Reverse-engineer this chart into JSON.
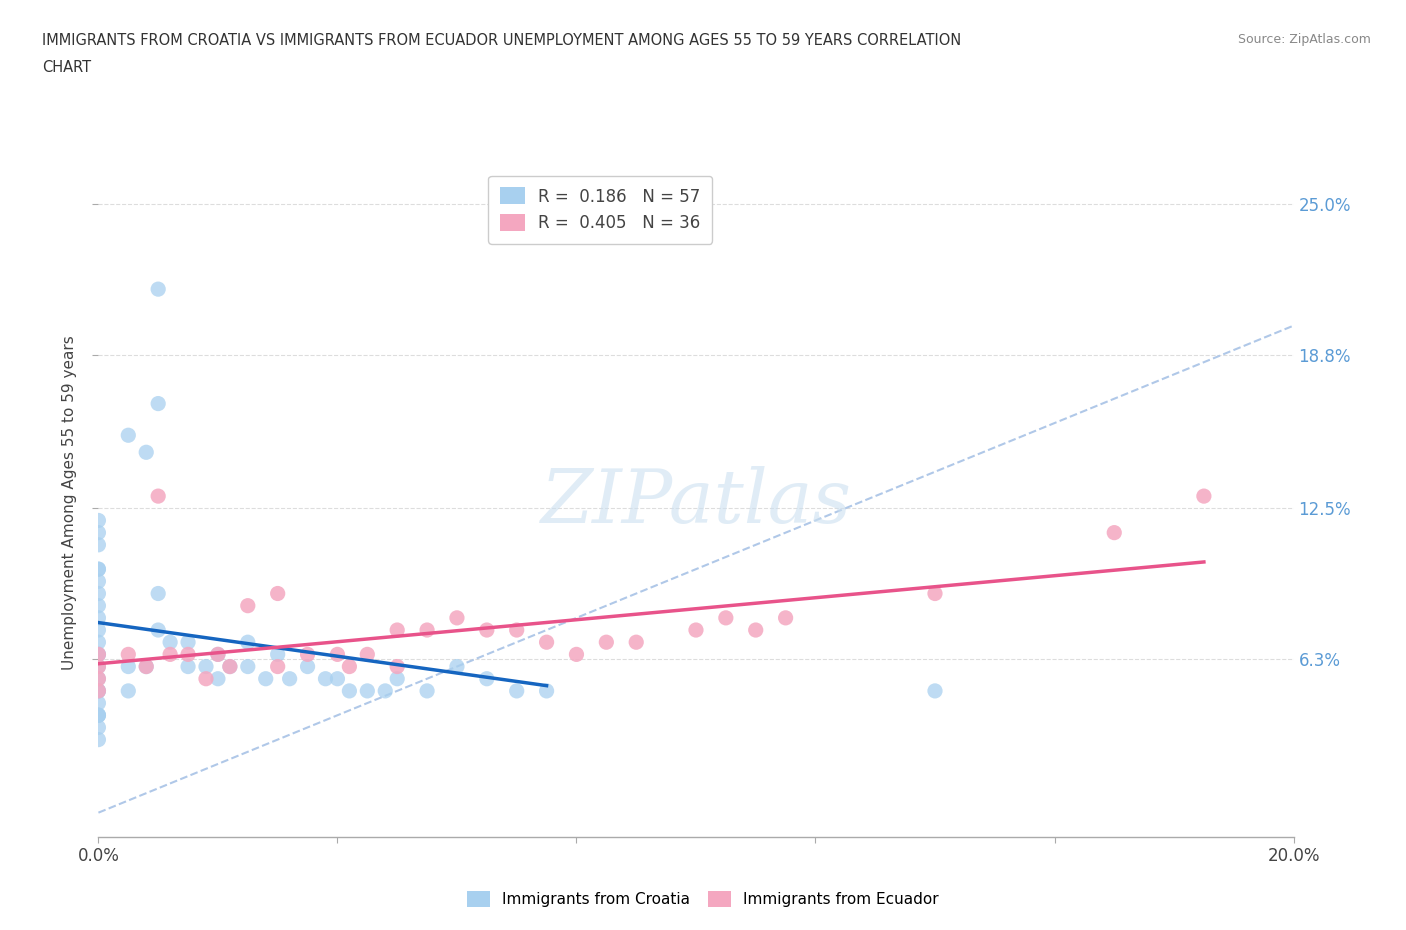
{
  "title_line1": "IMMIGRANTS FROM CROATIA VS IMMIGRANTS FROM ECUADOR UNEMPLOYMENT AMONG AGES 55 TO 59 YEARS CORRELATION",
  "title_line2": "CHART",
  "source_text": "Source: ZipAtlas.com",
  "ylabel": "Unemployment Among Ages 55 to 59 years",
  "xlim": [
    0.0,
    0.2
  ],
  "ylim": [
    -0.01,
    0.265
  ],
  "x_ticks": [
    0.0,
    0.04,
    0.08,
    0.12,
    0.16,
    0.2
  ],
  "y_tick_labels_right": [
    "6.3%",
    "12.5%",
    "18.8%",
    "25.0%"
  ],
  "y_tick_vals_right": [
    0.063,
    0.125,
    0.188,
    0.25
  ],
  "legend_R1": "R =  0.186",
  "legend_N1": "N = 57",
  "legend_R2": "R =  0.405",
  "legend_N2": "N = 36",
  "color_croatia": "#a8d0ef",
  "color_ecuador": "#f4a7c0",
  "color_trendline_croatia": "#1565C0",
  "color_trendline_ecuador": "#e8538a",
  "color_diagonal": "#b0c8e8",
  "croatia_x": [
    0.01,
    0.01,
    0.005,
    0.008,
    0.0,
    0.0,
    0.0,
    0.0,
    0.0,
    0.0,
    0.0,
    0.0,
    0.0,
    0.0,
    0.0,
    0.0,
    0.0,
    0.0,
    0.0,
    0.0,
    0.0,
    0.0,
    0.0,
    0.0,
    0.0,
    0.0,
    0.0,
    0.005,
    0.005,
    0.008,
    0.01,
    0.01,
    0.012,
    0.015,
    0.015,
    0.018,
    0.02,
    0.02,
    0.022,
    0.025,
    0.025,
    0.028,
    0.03,
    0.032,
    0.035,
    0.038,
    0.04,
    0.042,
    0.045,
    0.048,
    0.05,
    0.055,
    0.06,
    0.065,
    0.07,
    0.075,
    0.14
  ],
  "croatia_y": [
    0.215,
    0.168,
    0.155,
    0.148,
    0.12,
    0.115,
    0.11,
    0.1,
    0.1,
    0.095,
    0.09,
    0.085,
    0.08,
    0.075,
    0.07,
    0.065,
    0.065,
    0.06,
    0.055,
    0.05,
    0.05,
    0.045,
    0.04,
    0.04,
    0.04,
    0.035,
    0.03,
    0.06,
    0.05,
    0.06,
    0.09,
    0.075,
    0.07,
    0.07,
    0.06,
    0.06,
    0.065,
    0.055,
    0.06,
    0.07,
    0.06,
    0.055,
    0.065,
    0.055,
    0.06,
    0.055,
    0.055,
    0.05,
    0.05,
    0.05,
    0.055,
    0.05,
    0.06,
    0.055,
    0.05,
    0.05,
    0.05
  ],
  "ecuador_x": [
    0.0,
    0.0,
    0.0,
    0.0,
    0.005,
    0.008,
    0.01,
    0.012,
    0.015,
    0.018,
    0.02,
    0.022,
    0.025,
    0.03,
    0.03,
    0.035,
    0.04,
    0.042,
    0.045,
    0.05,
    0.05,
    0.055,
    0.06,
    0.065,
    0.07,
    0.075,
    0.08,
    0.085,
    0.09,
    0.1,
    0.105,
    0.11,
    0.115,
    0.14,
    0.17,
    0.185
  ],
  "ecuador_y": [
    0.065,
    0.06,
    0.055,
    0.05,
    0.065,
    0.06,
    0.13,
    0.065,
    0.065,
    0.055,
    0.065,
    0.06,
    0.085,
    0.06,
    0.09,
    0.065,
    0.065,
    0.06,
    0.065,
    0.06,
    0.075,
    0.075,
    0.08,
    0.075,
    0.075,
    0.07,
    0.065,
    0.07,
    0.07,
    0.075,
    0.08,
    0.075,
    0.08,
    0.09,
    0.115,
    0.13
  ],
  "background_color": "#ffffff",
  "grid_color": "#dddddd"
}
